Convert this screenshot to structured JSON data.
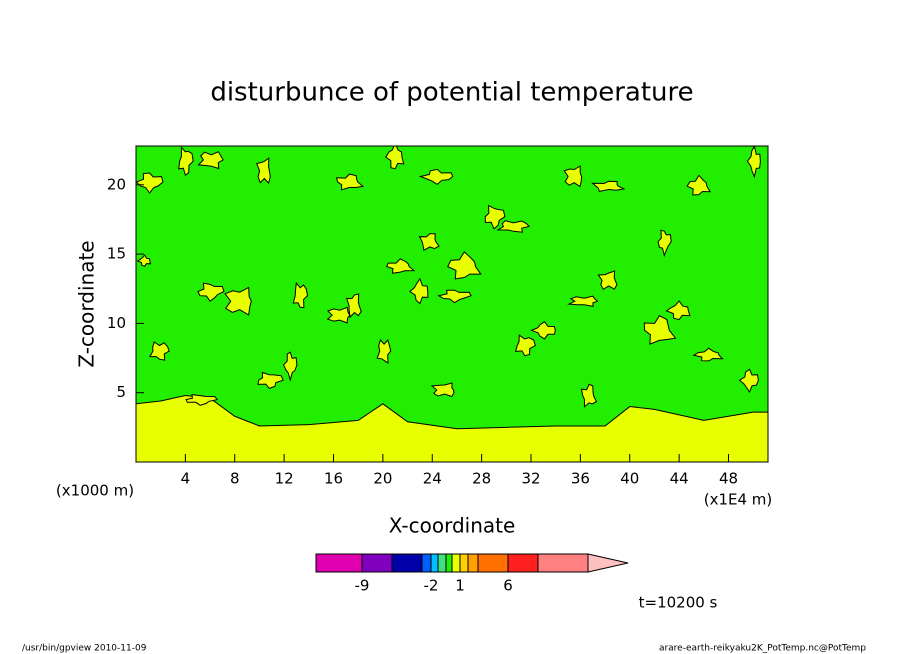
{
  "chart_data": {
    "type": "contour",
    "title": "disturbunce of potential temperature",
    "x_label": "X-coordinate",
    "y_label": "Z-coordinate",
    "x_unit_left": "(x1000 m)",
    "x_unit_right": "(x1E4 m)",
    "xlim": [
      0,
      51.2
    ],
    "ylim": [
      0,
      22.8
    ],
    "xticks": [
      4,
      8,
      12,
      16,
      20,
      24,
      28,
      32,
      36,
      40,
      44,
      48
    ],
    "yticks": [
      5,
      10,
      15,
      20
    ],
    "background_value": -0.2,
    "surface_layer": {
      "x": [
        0,
        2,
        4,
        6,
        8,
        10,
        14,
        18,
        20,
        22,
        26,
        30,
        34,
        38,
        40,
        42,
        46,
        50,
        51.2
      ],
      "z": [
        4.2,
        4.4,
        4.8,
        4.6,
        3.3,
        2.6,
        2.7,
        3.0,
        4.2,
        2.9,
        2.4,
        2.5,
        2.6,
        2.6,
        4.0,
        3.8,
        3.0,
        3.6,
        3.6
      ],
      "value": 0.5
    },
    "field": {
      "x": [
        0.7,
        1.1,
        4.0,
        6.1,
        10.4,
        17.3,
        21.0,
        24.4,
        29.0,
        30.6,
        35.5,
        38.3,
        45.6,
        50.1,
        6.0,
        13.3,
        16.5,
        17.7,
        21.4,
        23.0,
        25.8,
        31.5,
        36.3,
        38.3,
        42.4,
        44.0,
        12.5,
        10.8,
        20.1,
        25.0,
        36.7,
        46.4,
        49.7,
        5.2,
        1.9,
        8.4,
        23.8,
        26.6,
        33.1,
        42.8
      ],
      "z": [
        14.5,
        20.2,
        21.7,
        21.8,
        21.0,
        20.2,
        22.0,
        20.6,
        17.7,
        17.0,
        20.6,
        19.9,
        19.9,
        21.7,
        12.3,
        12.0,
        10.6,
        11.3,
        14.1,
        12.3,
        12.0,
        8.4,
        11.6,
        13.1,
        9.5,
        10.9,
        7.0,
        5.9,
        8.0,
        5.2,
        4.8,
        7.7,
        5.9,
        4.5,
        8.0,
        11.6,
        15.9,
        14.1,
        9.5,
        15.9
      ],
      "values": [
        0.5,
        0.5,
        0.5,
        0.5,
        0.5,
        0.5,
        0.5,
        0.5,
        0.5,
        0.5,
        0.5,
        0.5,
        0.5,
        0.5,
        0.5,
        0.5,
        0.5,
        0.5,
        0.5,
        0.5,
        0.5,
        0.5,
        0.5,
        0.5,
        0.5,
        0.5,
        0.5,
        0.5,
        0.5,
        0.5,
        0.5,
        0.5,
        0.5,
        0.5,
        0.5,
        0.5,
        0.5,
        0.5,
        0.5,
        0.5
      ]
    },
    "colorbar": {
      "levels": [
        -9,
        -6,
        -3,
        -2,
        -1,
        -0.5,
        0,
        1,
        2,
        4,
        6,
        9
      ],
      "colors": [
        "#e000b0",
        "#8000c0",
        "#0000a8",
        "#0060ff",
        "#00c0ff",
        "#40e080",
        "#22ee00",
        "#e8ff00",
        "#ffd000",
        "#ffa000",
        "#ff7000",
        "#ff2020",
        "#ff8080"
      ],
      "arrow_color": "#ffc0c0",
      "ticks": [
        -9,
        -2,
        1,
        6
      ]
    },
    "time_label": "t=10200 s",
    "footer_left": "/usr/bin/gpview  2010-11-09",
    "footer_right": "arare-earth-reikyaku2K_PotTemp.nc@PotTemp"
  }
}
